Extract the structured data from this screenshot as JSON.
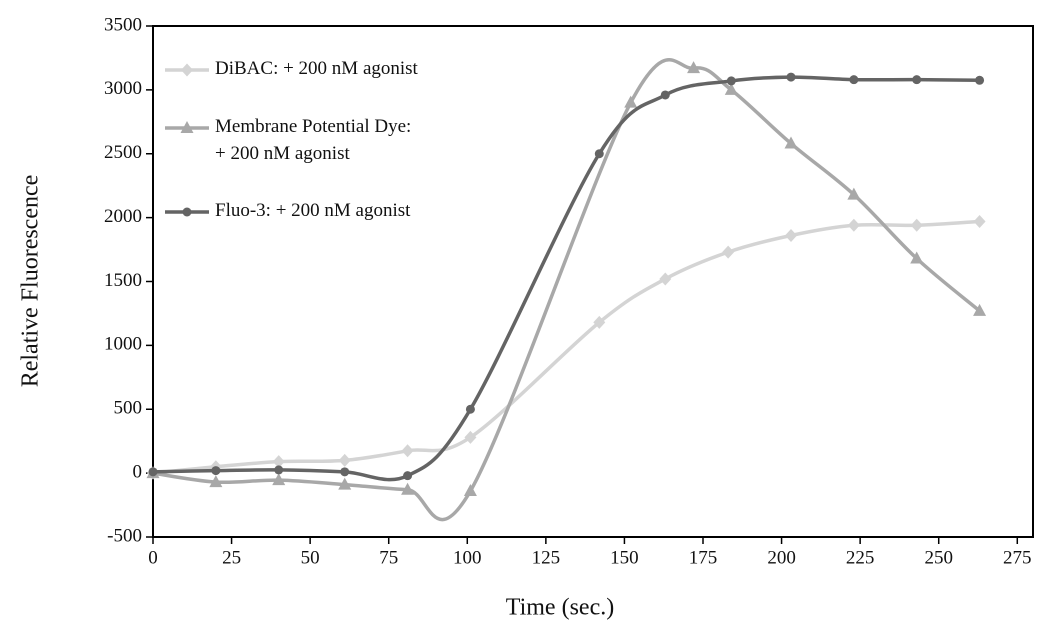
{
  "chart_data": {
    "type": "line",
    "x_label": "Time (sec.)",
    "y_label": "Relative Fluorescence",
    "xlim": [
      0,
      280
    ],
    "ylim": [
      -500,
      3500
    ],
    "xticks": [
      0,
      25,
      50,
      75,
      100,
      125,
      150,
      175,
      200,
      225,
      250,
      275
    ],
    "yticks": [
      -500,
      0,
      500,
      1000,
      1500,
      2000,
      2500,
      3000,
      3500
    ],
    "legend": "upper left",
    "smooth": true,
    "series": [
      {
        "name": "DiBAC:  + 200 nM agonist",
        "color": "#d4d4d4",
        "marker": "diamond",
        "x": [
          0,
          20,
          40,
          61,
          81,
          101,
          142,
          163,
          183,
          203,
          223,
          243,
          263
        ],
        "values": [
          0,
          50,
          90,
          100,
          175,
          280,
          1180,
          1520,
          1730,
          1860,
          1940,
          1940,
          1970
        ]
      },
      {
        "name": "Membrane Potential Dye:\n+ 200 nM agonist",
        "color": "#a8a8a8",
        "marker": "triangle",
        "x": [
          0,
          20,
          40,
          61,
          81,
          101,
          152,
          172,
          184,
          203,
          223,
          243,
          263
        ],
        "values": [
          0,
          -70,
          -55,
          -90,
          -130,
          -140,
          2900,
          3170,
          3000,
          2580,
          2180,
          1680,
          1270
        ]
      },
      {
        "name": "Fluo-3: + 200 nM agonist",
        "color": "#646464",
        "marker": "circle",
        "x": [
          0,
          20,
          40,
          61,
          81,
          101,
          142,
          163,
          184,
          203,
          223,
          243,
          263
        ],
        "values": [
          10,
          20,
          25,
          10,
          -20,
          500,
          2500,
          2960,
          3070,
          3100,
          3080,
          3080,
          3075
        ]
      }
    ]
  }
}
